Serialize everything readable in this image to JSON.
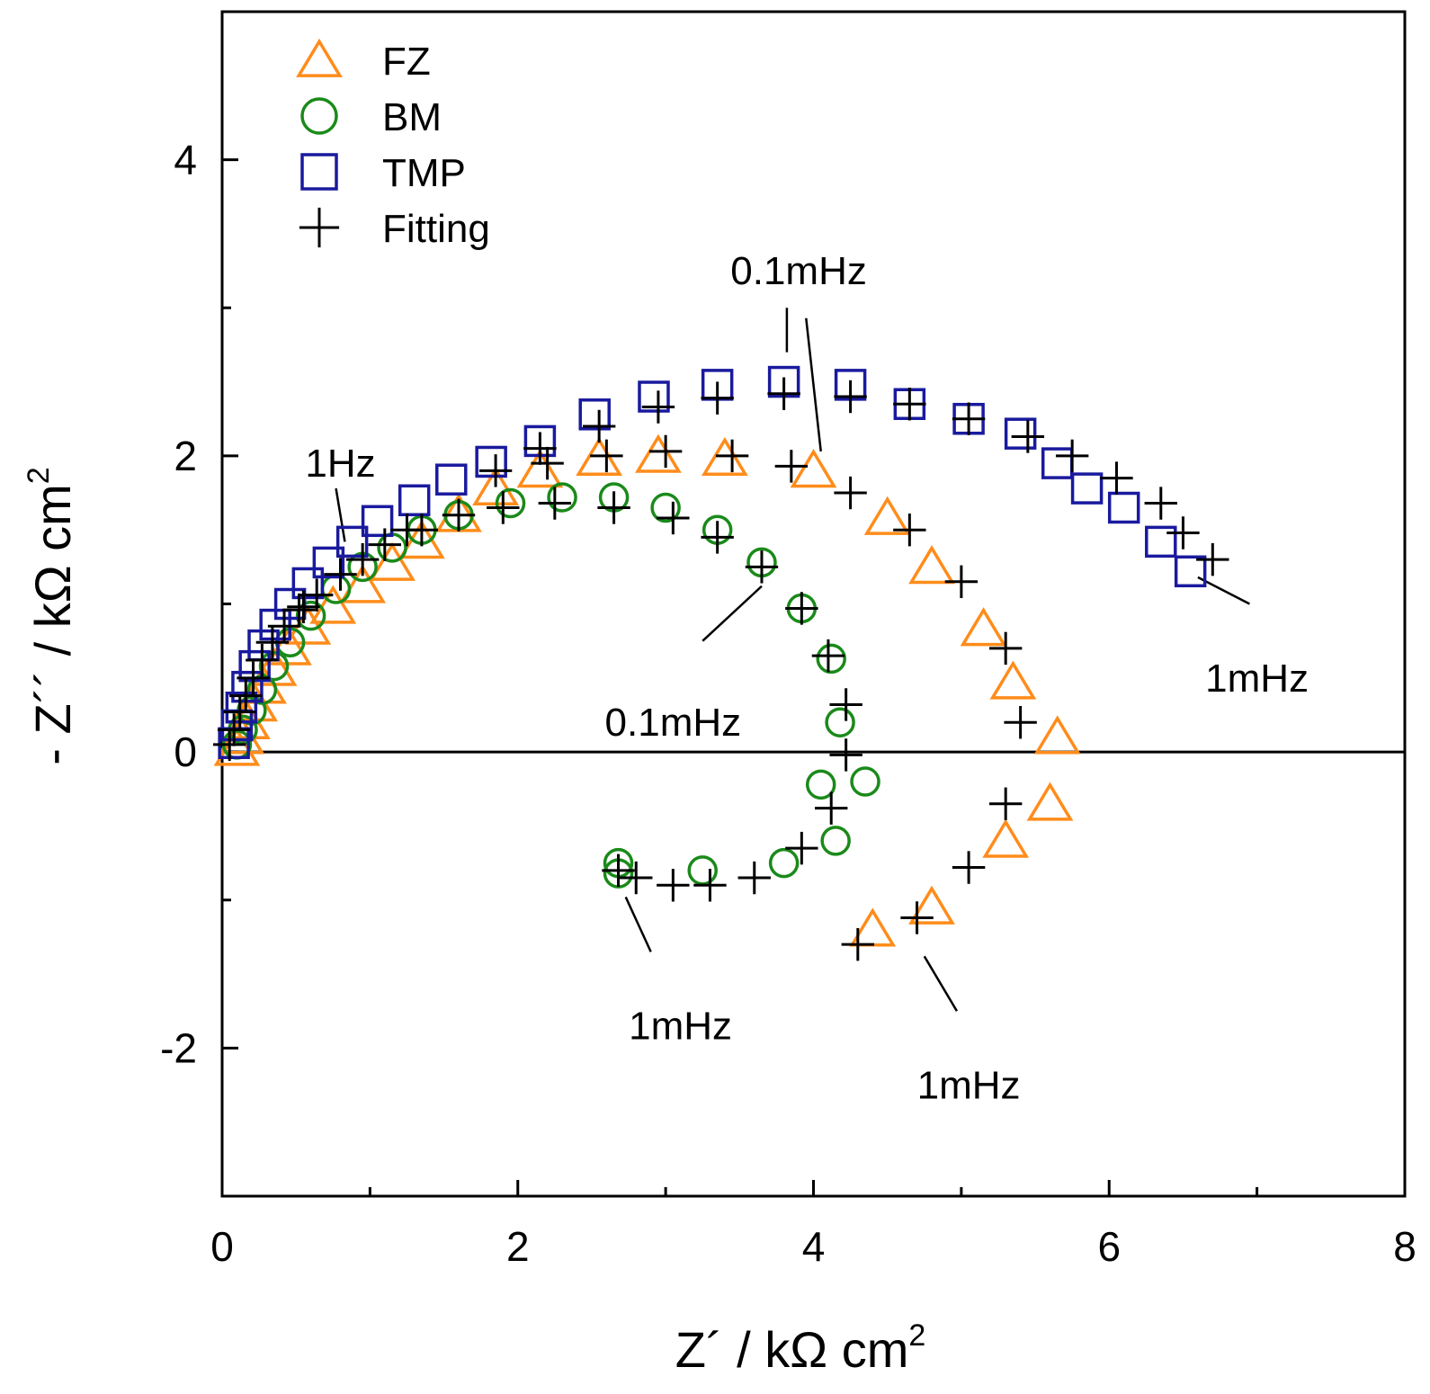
{
  "chart_data": {
    "type": "scatter",
    "xlabel": "Z´ / kΩ cm",
    "xlabel_sup": "2",
    "ylabel": "- Z´´ / kΩ cm",
    "ylabel_sup": "2",
    "xlim": [
      0,
      8
    ],
    "ylim": [
      -3,
      5
    ],
    "x_ticks": [
      0,
      2,
      4,
      6,
      8
    ],
    "x_minor_ticks": [
      1,
      3,
      5,
      7
    ],
    "y_ticks": [
      -2,
      0,
      2,
      4
    ],
    "y_minor_ticks": [
      -1,
      1,
      3
    ],
    "zero_line": true,
    "grid": false,
    "legend_position": "top-left",
    "series": [
      {
        "name": "FZ",
        "marker": "triangle",
        "color": "#ff8c1a",
        "points": [
          [
            0.1,
            0.02
          ],
          [
            0.13,
            0.1
          ],
          [
            0.17,
            0.2
          ],
          [
            0.22,
            0.32
          ],
          [
            0.28,
            0.44
          ],
          [
            0.35,
            0.56
          ],
          [
            0.45,
            0.7
          ],
          [
            0.58,
            0.84
          ],
          [
            0.75,
            0.98
          ],
          [
            0.95,
            1.12
          ],
          [
            1.15,
            1.27
          ],
          [
            1.35,
            1.42
          ],
          [
            1.6,
            1.6
          ],
          [
            1.85,
            1.78
          ],
          [
            2.15,
            1.9
          ],
          [
            2.55,
            1.98
          ],
          [
            2.95,
            2.0
          ],
          [
            3.4,
            1.98
          ],
          [
            4.0,
            1.9
          ],
          [
            4.5,
            1.58
          ],
          [
            4.8,
            1.25
          ],
          [
            5.15,
            0.83
          ],
          [
            5.35,
            0.47
          ],
          [
            5.65,
            0.1
          ],
          [
            5.6,
            -0.35
          ],
          [
            5.3,
            -0.6
          ],
          [
            4.8,
            -1.05
          ],
          [
            4.4,
            -1.2
          ]
        ]
      },
      {
        "name": "BM",
        "marker": "circle",
        "color": "#1a8a1a",
        "points": [
          [
            0.1,
            0.05
          ],
          [
            0.14,
            0.15
          ],
          [
            0.2,
            0.28
          ],
          [
            0.27,
            0.42
          ],
          [
            0.35,
            0.58
          ],
          [
            0.46,
            0.74
          ],
          [
            0.6,
            0.92
          ],
          [
            0.77,
            1.1
          ],
          [
            0.95,
            1.25
          ],
          [
            1.15,
            1.38
          ],
          [
            1.35,
            1.5
          ],
          [
            1.6,
            1.6
          ],
          [
            1.95,
            1.68
          ],
          [
            2.3,
            1.72
          ],
          [
            2.65,
            1.72
          ],
          [
            3.0,
            1.65
          ],
          [
            3.35,
            1.5
          ],
          [
            3.65,
            1.28
          ],
          [
            3.92,
            0.97
          ],
          [
            4.12,
            0.63
          ],
          [
            4.18,
            0.2
          ],
          [
            4.35,
            -0.2
          ],
          [
            4.05,
            -0.22
          ],
          [
            4.15,
            -0.6
          ],
          [
            3.8,
            -0.75
          ],
          [
            3.25,
            -0.8
          ],
          [
            2.68,
            -0.75
          ],
          [
            2.68,
            -0.82
          ]
        ]
      },
      {
        "name": "TMP",
        "marker": "square",
        "color": "#1a1a9e",
        "points": [
          [
            0.08,
            0.06
          ],
          [
            0.1,
            0.18
          ],
          [
            0.13,
            0.3
          ],
          [
            0.17,
            0.44
          ],
          [
            0.22,
            0.58
          ],
          [
            0.28,
            0.72
          ],
          [
            0.36,
            0.86
          ],
          [
            0.46,
            1.0
          ],
          [
            0.58,
            1.14
          ],
          [
            0.72,
            1.28
          ],
          [
            0.88,
            1.42
          ],
          [
            1.05,
            1.56
          ],
          [
            1.3,
            1.7
          ],
          [
            1.55,
            1.84
          ],
          [
            1.82,
            1.96
          ],
          [
            2.15,
            2.1
          ],
          [
            2.52,
            2.28
          ],
          [
            2.92,
            2.4
          ],
          [
            3.35,
            2.48
          ],
          [
            3.8,
            2.5
          ],
          [
            4.25,
            2.48
          ],
          [
            4.65,
            2.35
          ],
          [
            5.05,
            2.25
          ],
          [
            5.4,
            2.15
          ],
          [
            5.65,
            1.95
          ],
          [
            5.85,
            1.78
          ],
          [
            6.1,
            1.65
          ],
          [
            6.35,
            1.42
          ],
          [
            6.55,
            1.22
          ]
        ]
      },
      {
        "name": "Fitting",
        "marker": "plus",
        "color": "#000000",
        "points": [
          [
            0.05,
            0.05
          ],
          [
            0.08,
            0.15
          ],
          [
            0.12,
            0.27
          ],
          [
            0.16,
            0.38
          ],
          [
            0.21,
            0.5
          ],
          [
            0.27,
            0.62
          ],
          [
            0.34,
            0.74
          ],
          [
            0.42,
            0.85
          ],
          [
            0.52,
            0.96
          ],
          [
            0.64,
            1.06
          ],
          [
            0.8,
            1.2
          ],
          [
            0.95,
            1.3
          ],
          [
            1.1,
            1.4
          ],
          [
            1.35,
            1.5
          ],
          [
            1.6,
            1.6
          ],
          [
            1.9,
            1.65
          ],
          [
            2.25,
            1.68
          ],
          [
            2.65,
            1.65
          ],
          [
            3.05,
            1.58
          ],
          [
            3.35,
            1.45
          ],
          [
            3.65,
            1.25
          ],
          [
            3.92,
            0.97
          ],
          [
            4.1,
            0.65
          ],
          [
            4.22,
            0.32
          ],
          [
            4.22,
            -0.02
          ],
          [
            4.12,
            -0.38
          ],
          [
            3.92,
            -0.65
          ],
          [
            3.6,
            -0.85
          ],
          [
            3.3,
            -0.9
          ],
          [
            3.05,
            -0.9
          ],
          [
            2.8,
            -0.85
          ],
          [
            2.68,
            -0.8
          ],
          [
            0.55,
            0.98
          ],
          [
            1.25,
            1.5
          ],
          [
            1.85,
            1.9
          ],
          [
            2.2,
            1.95
          ],
          [
            2.6,
            2.0
          ],
          [
            3.0,
            2.03
          ],
          [
            3.45,
            2.0
          ],
          [
            3.85,
            1.93
          ],
          [
            4.25,
            1.75
          ],
          [
            4.65,
            1.5
          ],
          [
            5.0,
            1.15
          ],
          [
            5.3,
            0.7
          ],
          [
            5.4,
            0.2
          ],
          [
            5.3,
            -0.35
          ],
          [
            5.05,
            -0.78
          ],
          [
            4.7,
            -1.12
          ],
          [
            4.3,
            -1.3
          ],
          [
            2.55,
            2.2
          ],
          [
            2.95,
            2.33
          ],
          [
            3.35,
            2.39
          ],
          [
            3.8,
            2.42
          ],
          [
            4.25,
            2.4
          ],
          [
            4.65,
            2.35
          ],
          [
            5.05,
            2.25
          ],
          [
            5.45,
            2.13
          ],
          [
            5.75,
            2.0
          ],
          [
            6.05,
            1.85
          ],
          [
            6.35,
            1.68
          ],
          [
            6.5,
            1.48
          ],
          [
            6.7,
            1.3
          ],
          [
            2.15,
            2.05
          ]
        ]
      }
    ],
    "annotations": [
      {
        "text": "1Hz",
        "x": 0.8,
        "y": 1.95,
        "line": [
          [
            0.77,
            1.78
          ],
          [
            0.83,
            1.42
          ]
        ]
      },
      {
        "text": "0.1mHz",
        "x": 3.9,
        "y": 3.25,
        "line": [
          [
            3.82,
            3.0
          ],
          [
            3.82,
            2.7
          ]
        ],
        "line2": [
          [
            3.95,
            2.93
          ],
          [
            4.05,
            2.03
          ]
        ]
      },
      {
        "text": "0.1mHz",
        "x": 3.05,
        "y": 0.2,
        "line": [
          [
            3.25,
            0.75
          ],
          [
            3.65,
            1.12
          ]
        ]
      },
      {
        "text": "1mHz",
        "x": 7.0,
        "y": 0.5,
        "line": [
          [
            6.95,
            1.0
          ],
          [
            6.6,
            1.18
          ]
        ]
      },
      {
        "text": "1mHz",
        "x": 3.1,
        "y": -1.85,
        "line": [
          [
            2.9,
            -1.35
          ],
          [
            2.73,
            -0.98
          ]
        ]
      },
      {
        "text": "1mHz",
        "x": 5.05,
        "y": -2.25,
        "line": [
          [
            4.97,
            -1.75
          ],
          [
            4.75,
            -1.38
          ]
        ]
      }
    ]
  }
}
